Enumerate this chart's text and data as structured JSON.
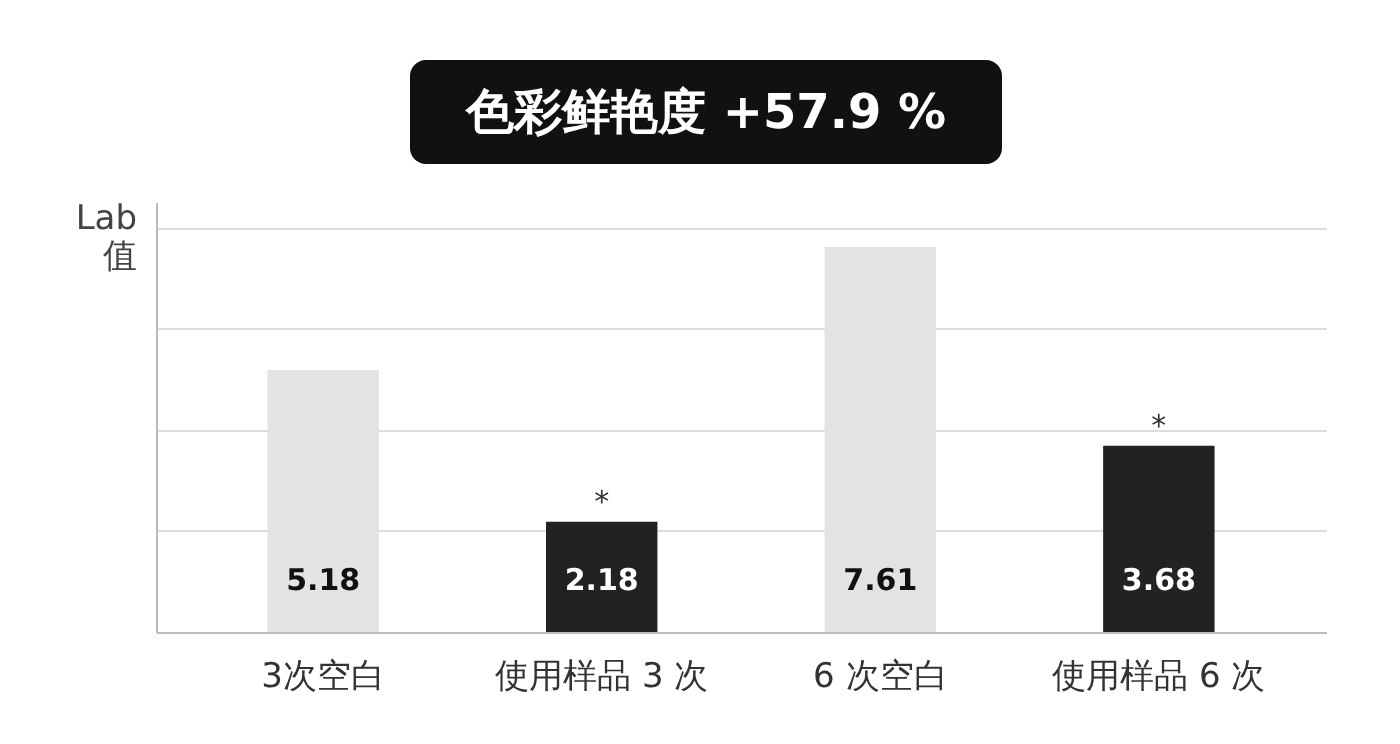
{
  "chart_data": {
    "type": "bar",
    "ylabel": "Lab 值",
    "categories": [
      "3次空白",
      "使用样品 3 次",
      "6 次空白",
      "使用样品 6 次"
    ],
    "values": [
      5.18,
      2.18,
      7.61,
      3.68
    ],
    "colors": [
      "#e3e3e3",
      "#222222",
      "#e3e3e3",
      "#222222"
    ],
    "ylim": [
      0,
      8.5
    ],
    "yticks": [
      {
        "value": 0,
        "label": null
      },
      {
        "value": 2,
        "label": null
      },
      {
        "value": 4,
        "label": null
      },
      {
        "value": 6,
        "label": null
      },
      {
        "value": 8,
        "label": null
      }
    ],
    "grid": "y",
    "data_labels": true,
    "tick_labels": "x",
    "annotations": [
      "色彩鲜艳度 +57.9 %",
      {
        "text": "*",
        "x": "使用样品 3 次",
        "y": 2.18
      },
      {
        "text": "*",
        "x": "使用样品 6 次",
        "y": 3.68
      }
    ]
  }
}
